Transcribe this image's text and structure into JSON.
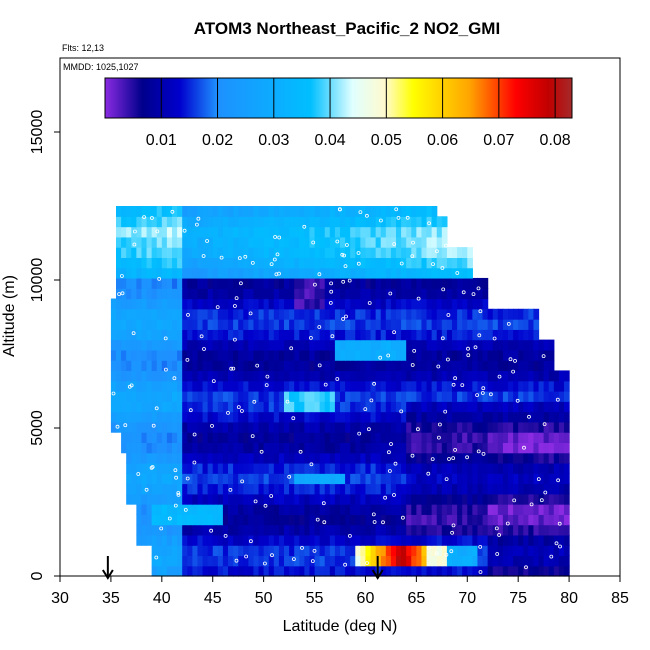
{
  "chart_data": {
    "type": "heatmap",
    "title": "ATOM3 Northeast_Pacific_2 NO2_GMI",
    "flights_label": "Flts: 12,13",
    "dates_label": "MMDD: 1025,1027",
    "xlabel": "Latitude (deg N)",
    "ylabel": "Altitude (m)",
    "xlim": [
      30,
      85
    ],
    "ylim": [
      0,
      17500
    ],
    "x_ticks": [
      "30",
      "35",
      "40",
      "45",
      "50",
      "55",
      "60",
      "65",
      "70",
      "75",
      "80",
      "85"
    ],
    "y_ticks": [
      "0",
      "5000",
      "10000",
      "15000"
    ],
    "colorbar": {
      "range": [
        0.0,
        0.083
      ],
      "tick_labels": [
        "0.01",
        "0.02",
        "0.03",
        "0.04",
        "0.05",
        "0.06",
        "0.07",
        "0.08"
      ],
      "colors": [
        "#8a2be2",
        "#00008b",
        "#0000cd",
        "#1e90ff",
        "#00bfff",
        "#e0ffff",
        "#fffacd",
        "#ffff00",
        "#ffa500",
        "#ff0000",
        "#a52a2a"
      ]
    },
    "arrow_markers_lat": [
      34.7,
      61.2
    ],
    "grid": false,
    "legend": "top colorbar"
  }
}
